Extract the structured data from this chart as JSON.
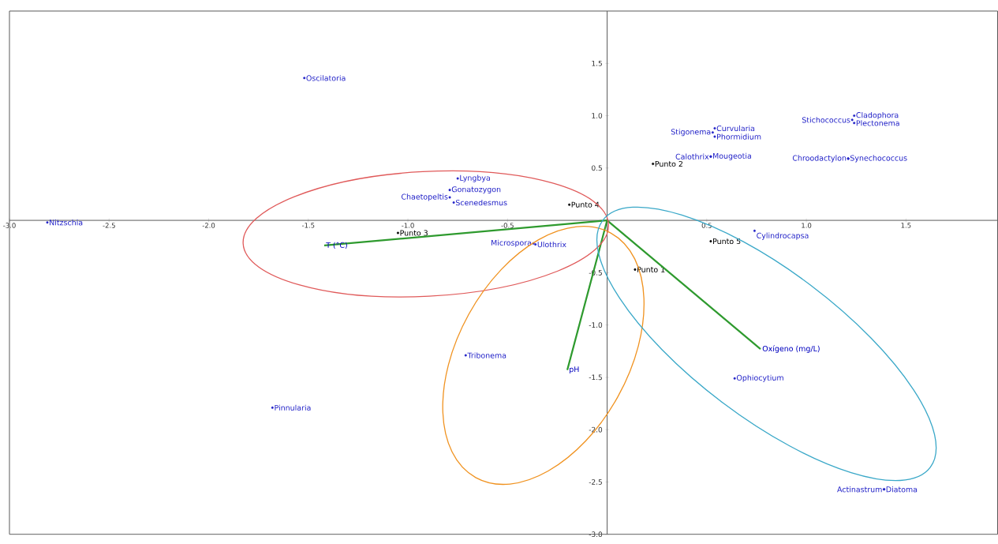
{
  "chart_data": {
    "type": "scatter",
    "xlim": [
      -3.0,
      1.96
    ],
    "ylim": [
      -3.0,
      2.0
    ],
    "xticks": [
      {
        "value": -3,
        "label": "-3.0"
      },
      -2.5,
      {
        "value": -2,
        "label": "-2.0"
      },
      -1.5,
      {
        "value": -1,
        "label": "-1.0"
      },
      -0.5,
      0.5,
      {
        "value": 1,
        "label": "1.0"
      },
      1.5
    ],
    "yticks": [
      {
        "value": -3,
        "label": "-3.0"
      },
      -2.5,
      {
        "value": -2,
        "label": "-2.0"
      },
      -1.5,
      {
        "value": -1,
        "label": "-1.0"
      },
      -0.5,
      0.5,
      {
        "value": 1,
        "label": "1.0"
      },
      1.5
    ],
    "series": [
      {
        "type": "scatter",
        "marker": "circle",
        "color": "#2323c8",
        "x": [
          -1.52,
          -2.81,
          -0.75,
          -0.79,
          -0.79,
          -0.77,
          -0.37,
          -0.36,
          -0.71,
          -1.68,
          0.74,
          0.64,
          1.39,
          1.39,
          0.52,
          0.52,
          0.53,
          0.54,
          0.54,
          1.23,
          1.24,
          1.24,
          1.21,
          1.21
        ],
        "values": [
          1.36,
          -0.02,
          0.4,
          0.29,
          0.22,
          0.17,
          -0.22,
          -0.23,
          -1.29,
          -1.79,
          -0.1,
          -1.51,
          -2.57,
          -2.57,
          0.61,
          0.61,
          0.84,
          0.88,
          0.8,
          0.96,
          1.0,
          0.93,
          0.59,
          0.59
        ],
        "value_labels": [
          "Oscilatoria",
          "Nitzschia",
          "Lyngbya",
          "Gonatozygon",
          "Chaetopeltis",
          "Scenedesmus",
          "Microspora",
          "Ulothrix",
          "Tribonema",
          "Pinnularia",
          "Cylindrocapsa",
          "Ophiocytium",
          "Actinastrum",
          "Diatoma",
          "Calothrix",
          "Mougeotia",
          "Stigonema",
          "Curvularia",
          "Phormidium",
          "Stichococcus",
          "Cladophora",
          "Plectonema",
          "Chroodactylon",
          "Synechococcus"
        ]
      },
      {
        "type": "scatter",
        "marker": "circle",
        "color": "#000000",
        "x": [
          0.14,
          0.23,
          -1.05,
          -0.19,
          0.52
        ],
        "values": [
          -0.47,
          0.54,
          -0.12,
          0.15,
          -0.2
        ],
        "value_labels": [
          "Punto 1",
          "Punto 2",
          "Punto 3",
          "Punto 4",
          "Punto 5"
        ]
      },
      {
        "type": "line",
        "name": "T (°C)",
        "color": "#2e9a2e",
        "x": [
          0,
          -1.42
        ],
        "values": [
          0,
          -0.24
        ]
      },
      {
        "type": "line",
        "name": "pH",
        "color": "#2e9a2e",
        "x": [
          0,
          -0.2
        ],
        "values": [
          0,
          -1.43
        ]
      },
      {
        "type": "line",
        "name": "Oxígeno (mg/L)",
        "color": "#2e9a2e",
        "x": [
          0,
          0.77
        ],
        "values": [
          0,
          -1.23
        ]
      }
    ]
  }
}
